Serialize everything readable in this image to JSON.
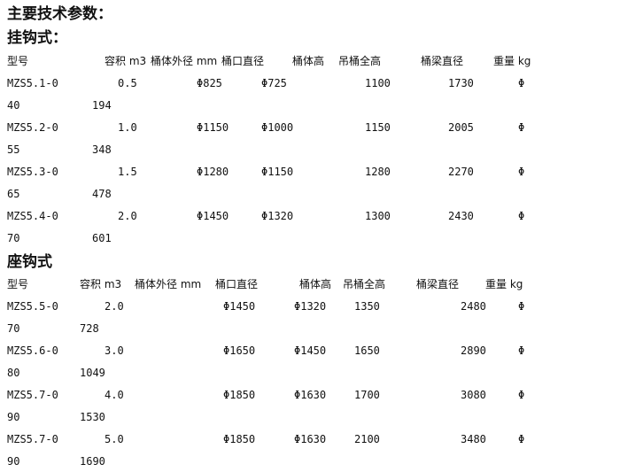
{
  "title": "主要技术参数：",
  "sections": [
    {
      "heading": "挂钩式：",
      "headers": [
        "型号",
        "容积 m3",
        "桶体外径 mm",
        "桶口直径",
        "桶体高",
        "吊桶全高",
        "桶梁直径",
        "重量 kg"
      ],
      "rows": [
        {
          "model": "MZS5.1-0",
          "volume": "0.5",
          "outer": "Φ825",
          "mouth": "Φ725",
          "height": "1100",
          "total": "1730",
          "beam": "Φ",
          "beam_cont": "40",
          "weight": "194"
        },
        {
          "model": "MZS5.2-0",
          "volume": "1.0",
          "outer": "Φ1150",
          "mouth": "Φ1000",
          "height": "1150",
          "total": "2005",
          "beam": "Φ",
          "beam_cont": "55",
          "weight": "348"
        },
        {
          "model": "MZS5.3-0",
          "volume": "1.5",
          "outer": "Φ1280",
          "mouth": "Φ1150",
          "height": "1280",
          "total": "2270",
          "beam": "Φ",
          "beam_cont": "65",
          "weight": "478"
        },
        {
          "model": "MZS5.4-0",
          "volume": "2.0",
          "outer": "Φ1450",
          "mouth": "Φ1320",
          "height": "1300",
          "total": "2430",
          "beam": "Φ",
          "beam_cont": "70",
          "weight": "601"
        }
      ]
    },
    {
      "heading": "座钩式",
      "headers": [
        "型号",
        "容积 m3",
        "桶体外径 mm",
        "桶口直径",
        "桶体高",
        "吊桶全高",
        "桶梁直径",
        "重量 kg"
      ],
      "rows": [
        {
          "model": "MZS5.5-0",
          "volume": "2.0",
          "outer": "Φ1450",
          "mouth": "Φ1320",
          "height": "1350",
          "total": "2480",
          "beam": "Φ",
          "beam_cont": "70",
          "weight": "728"
        },
        {
          "model": "MZS5.6-0",
          "volume": "3.0",
          "outer": "Φ1650",
          "mouth": "Φ1450",
          "height": "1650",
          "total": "2890",
          "beam": "Φ",
          "beam_cont": "80",
          "weight": "1049"
        },
        {
          "model": "MZS5.7-0",
          "volume": "4.0",
          "outer": "Φ1850",
          "mouth": "Φ1630",
          "height": "1700",
          "total": "3080",
          "beam": "Φ",
          "beam_cont": "90",
          "weight": "1530"
        },
        {
          "model": "MZS5.7-0",
          "volume": "5.0",
          "outer": "Φ1850",
          "mouth": "Φ1630",
          "height": "2100",
          "total": "3480",
          "beam": "Φ",
          "beam_cont": "90",
          "weight": "1690"
        }
      ]
    }
  ]
}
